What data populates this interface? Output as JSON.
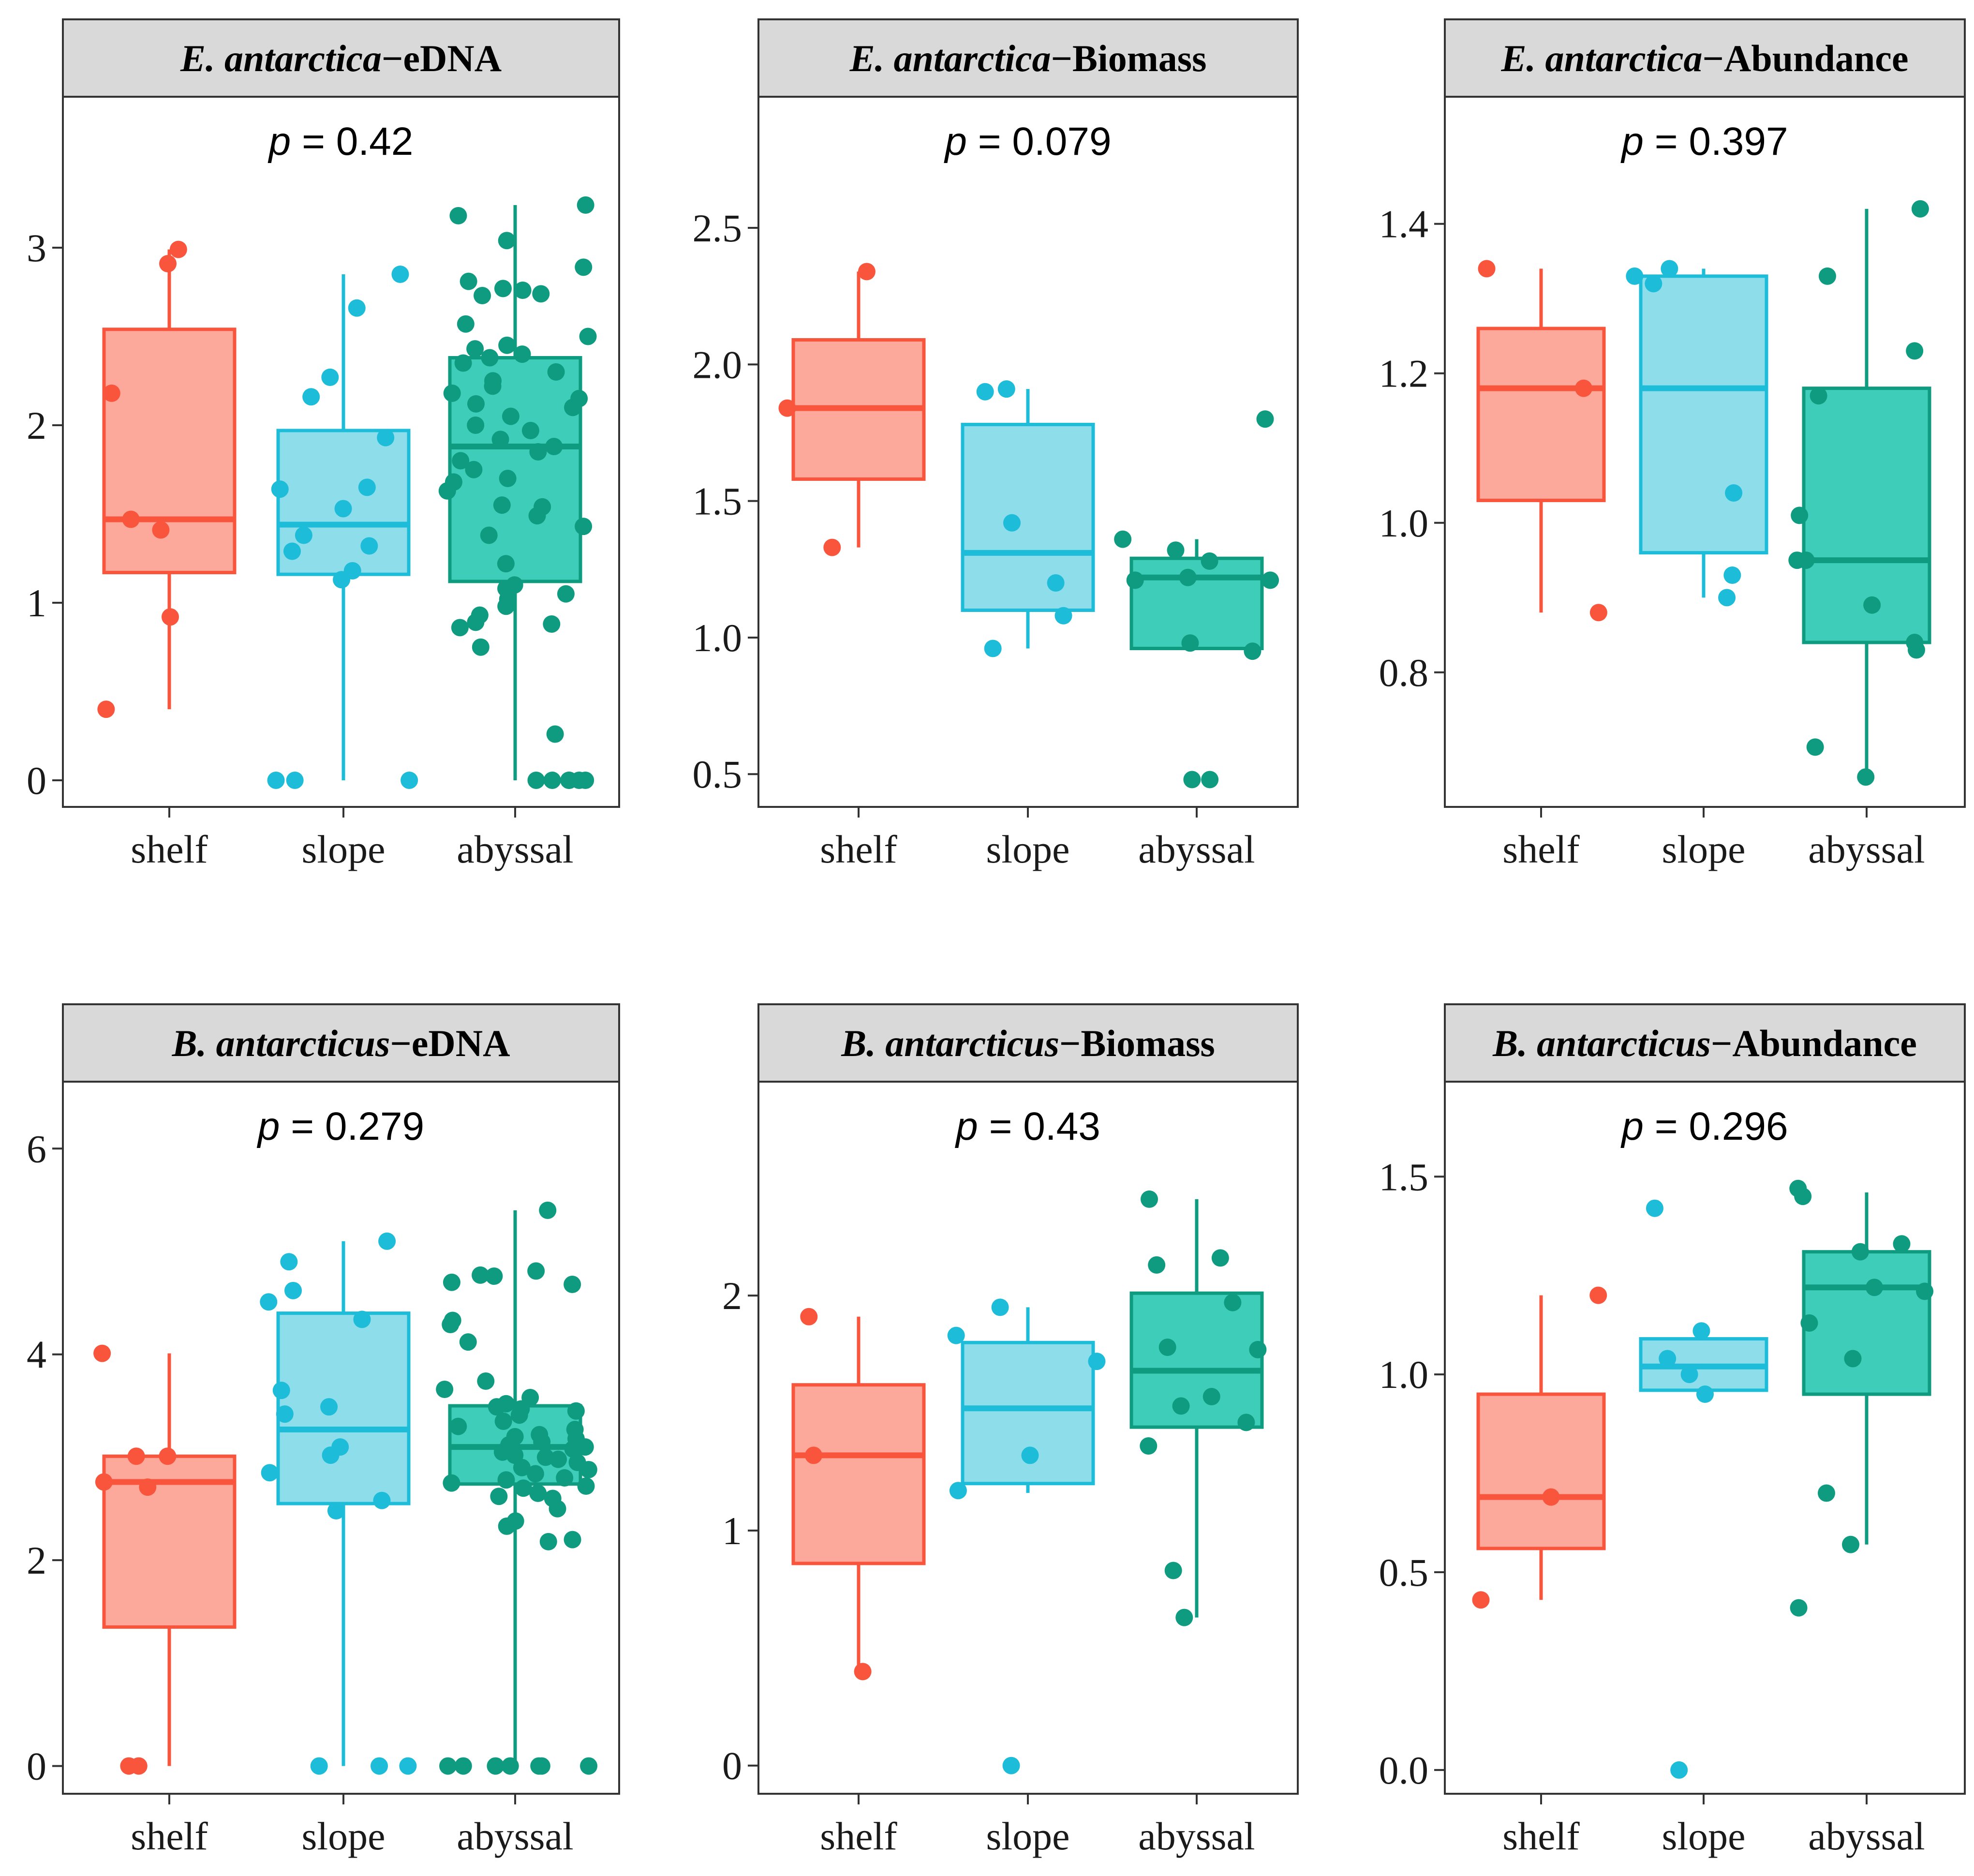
{
  "colors": {
    "shelf": {
      "line": "#F8553C",
      "fill": "#FCA89A"
    },
    "slope": {
      "line": "#1DBCD8",
      "fill": "#8EDDEB"
    },
    "abyssal": {
      "line": "#0E9B80",
      "fill": "#3ECDB8"
    },
    "strip": "#d9d9d9",
    "frame": "#333333"
  },
  "chart_data": [
    {
      "type": "box",
      "species": "E. antarctica",
      "metric": "eDNA",
      "title_species": "E. antarctica",
      "title_metric": "−eDNA",
      "p_label": "p",
      "p_value": "= 0.42",
      "categories": [
        "shelf",
        "slope",
        "abyssal"
      ],
      "ylim": [
        -0.15,
        3.85
      ],
      "yticks": [
        0,
        1,
        2,
        3
      ],
      "yticklabels": [
        "0",
        "1",
        "2",
        "3"
      ],
      "boxes": [
        {
          "category": "shelf",
          "whisker_low": 0.4,
          "q1": 1.17,
          "median": 1.47,
          "q3": 2.54,
          "whisker_high": 2.99
        },
        {
          "category": "slope",
          "whisker_low": 0.0,
          "q1": 1.16,
          "median": 1.44,
          "q3": 1.97,
          "whisker_high": 2.85
        },
        {
          "category": "abyssal",
          "whisker_low": 0.0,
          "q1": 1.12,
          "median": 1.88,
          "q3": 2.38,
          "whisker_high": 3.24
        }
      ],
      "points": [
        {
          "category": "shelf",
          "y": [
            2.91,
            2.99,
            2.18,
            1.47,
            1.41,
            0.92,
            0.4
          ]
        },
        {
          "category": "slope",
          "y": [
            2.85,
            2.66,
            2.27,
            2.16,
            1.93,
            1.65,
            1.64,
            1.53,
            1.38,
            1.32,
            1.29,
            1.18,
            1.13,
            0.0,
            0.0,
            0.0
          ]
        },
        {
          "category": "abyssal",
          "y": [
            3.24,
            3.18,
            3.04,
            2.89,
            2.81,
            2.77,
            2.76,
            2.74,
            2.73,
            2.57,
            2.5,
            2.45,
            2.43,
            2.4,
            2.38,
            2.35,
            2.3,
            2.25,
            2.22,
            2.18,
            2.15,
            2.12,
            2.1,
            2.05,
            2.0,
            1.97,
            1.92,
            1.88,
            1.85,
            1.8,
            1.75,
            1.7,
            1.68,
            1.63,
            1.55,
            1.54,
            1.49,
            1.43,
            1.38,
            1.22,
            1.1,
            1.08,
            1.05,
            1.02,
            0.98,
            0.93,
            0.89,
            0.88,
            0.86,
            0.75,
            0.26,
            0.0,
            0.0,
            0.0,
            0.0,
            0.0,
            0.0
          ]
        }
      ]
    },
    {
      "type": "box",
      "species": "E. antarctica",
      "metric": "Biomass",
      "title_species": "E. antarctica",
      "title_metric": "−Biomass",
      "p_label": "p",
      "p_value": "= 0.079",
      "categories": [
        "shelf",
        "slope",
        "abyssal"
      ],
      "ylim": [
        0.38,
        2.98
      ],
      "yticks": [
        0.5,
        1.0,
        1.5,
        2.0,
        2.5
      ],
      "yticklabels": [
        "0.5",
        "1.0",
        "1.5",
        "2.0",
        "2.5"
      ],
      "boxes": [
        {
          "category": "shelf",
          "whisker_low": 1.33,
          "q1": 1.58,
          "median": 1.84,
          "q3": 2.09,
          "whisker_high": 2.34
        },
        {
          "category": "slope",
          "whisker_low": 0.96,
          "q1": 1.1,
          "median": 1.31,
          "q3": 1.78,
          "whisker_high": 1.91
        },
        {
          "category": "abyssal",
          "whisker_low": 0.96,
          "q1": 0.96,
          "median": 1.22,
          "q3": 1.29,
          "whisker_high": 1.36
        }
      ],
      "points": [
        {
          "category": "shelf",
          "y": [
            2.34,
            1.84,
            1.33
          ]
        },
        {
          "category": "slope",
          "y": [
            1.91,
            1.9,
            1.42,
            1.2,
            1.08,
            0.96
          ]
        },
        {
          "category": "abyssal",
          "y": [
            1.8,
            1.36,
            1.32,
            1.28,
            1.22,
            1.21,
            1.21,
            0.98,
            0.95,
            0.48,
            0.48
          ]
        }
      ]
    },
    {
      "type": "box",
      "species": "E. antarctica",
      "metric": "Abundance",
      "title_species": "E. antarctica",
      "title_metric": "−Abundance",
      "p_label": "p",
      "p_value": "= 0.397",
      "categories": [
        "shelf",
        "slope",
        "abyssal"
      ],
      "ylim": [
        0.62,
        1.57
      ],
      "yticks": [
        0.8,
        1.0,
        1.2,
        1.4
      ],
      "yticklabels": [
        "0.8",
        "1.0",
        "1.2",
        "1.4"
      ],
      "boxes": [
        {
          "category": "shelf",
          "whisker_low": 0.88,
          "q1": 1.03,
          "median": 1.18,
          "q3": 1.26,
          "whisker_high": 1.34
        },
        {
          "category": "slope",
          "whisker_low": 0.9,
          "q1": 0.96,
          "median": 1.18,
          "q3": 1.33,
          "whisker_high": 1.34
        },
        {
          "category": "abyssal",
          "whisker_low": 0.66,
          "q1": 0.84,
          "median": 0.95,
          "q3": 1.18,
          "whisker_high": 1.42
        }
      ],
      "points": [
        {
          "category": "shelf",
          "y": [
            1.34,
            1.18,
            0.88
          ]
        },
        {
          "category": "slope",
          "y": [
            1.34,
            1.33,
            1.32,
            1.04,
            0.93,
            0.9
          ]
        },
        {
          "category": "abyssal",
          "y": [
            1.42,
            1.33,
            1.23,
            1.17,
            1.01,
            0.95,
            0.95,
            0.89,
            0.84,
            0.83,
            0.7,
            0.66
          ]
        }
      ]
    },
    {
      "type": "box",
      "species": "B. antarcticus",
      "metric": "eDNA",
      "title_species": "B. antarcticus",
      "title_metric": "−eDNA",
      "p_label": "p",
      "p_value": "= 0.279",
      "categories": [
        "shelf",
        "slope",
        "abyssal"
      ],
      "ylim": [
        -0.27,
        6.65
      ],
      "yticks": [
        0,
        2,
        4,
        6
      ],
      "yticklabels": [
        "0",
        "2",
        "4",
        "6"
      ],
      "boxes": [
        {
          "category": "shelf",
          "whisker_low": 0.0,
          "q1": 1.35,
          "median": 2.76,
          "q3": 3.01,
          "whisker_high": 4.01
        },
        {
          "category": "slope",
          "whisker_low": 0.0,
          "q1": 2.55,
          "median": 3.27,
          "q3": 4.4,
          "whisker_high": 5.1
        },
        {
          "category": "abyssal",
          "whisker_low": 0.0,
          "q1": 2.74,
          "median": 3.1,
          "q3": 3.5,
          "whisker_high": 5.4
        }
      ],
      "points": [
        {
          "category": "shelf",
          "y": [
            4.01,
            3.01,
            3.01,
            2.76,
            2.71,
            0.0,
            0.0
          ]
        },
        {
          "category": "slope",
          "y": [
            5.1,
            4.9,
            4.62,
            4.51,
            4.34,
            3.65,
            3.49,
            3.42,
            3.1,
            3.02,
            2.85,
            2.58,
            2.48,
            0.0,
            0.0,
            0.0
          ]
        },
        {
          "category": "abyssal",
          "y": [
            5.4,
            4.81,
            4.77,
            4.76,
            4.7,
            4.68,
            4.33,
            4.29,
            4.12,
            3.74,
            3.66,
            3.58,
            3.52,
            3.49,
            3.47,
            3.45,
            3.41,
            3.35,
            3.3,
            3.27,
            3.22,
            3.2,
            3.18,
            3.15,
            3.12,
            3.1,
            3.08,
            3.05,
            3.02,
            3.0,
            2.98,
            2.95,
            2.9,
            2.88,
            2.84,
            2.8,
            2.78,
            2.75,
            2.72,
            2.7,
            2.65,
            2.62,
            2.6,
            2.5,
            2.38,
            2.33,
            2.2,
            2.18,
            0.0,
            0.0,
            0.0,
            0.0,
            0.0,
            0.0,
            0.0
          ]
        }
      ]
    },
    {
      "type": "box",
      "species": "B. antarcticus",
      "metric": "Biomass",
      "title_species": "B. antarcticus",
      "title_metric": "−Biomass",
      "p_label": "p",
      "p_value": "= 0.43",
      "categories": [
        "shelf",
        "slope",
        "abyssal"
      ],
      "ylim": [
        -0.12,
        2.91
      ],
      "yticks": [
        0,
        1,
        2
      ],
      "yticklabels": [
        "0",
        "1",
        "2"
      ],
      "boxes": [
        {
          "category": "shelf",
          "whisker_low": 0.4,
          "q1": 0.86,
          "median": 1.32,
          "q3": 1.62,
          "whisker_high": 1.91
        },
        {
          "category": "slope",
          "whisker_low": 1.16,
          "q1": 1.2,
          "median": 1.52,
          "q3": 1.8,
          "whisker_high": 1.95
        },
        {
          "category": "abyssal",
          "whisker_low": 0.63,
          "q1": 1.44,
          "median": 1.68,
          "q3": 2.01,
          "whisker_high": 2.41
        }
      ],
      "points": [
        {
          "category": "shelf",
          "y": [
            1.91,
            1.32,
            0.4
          ]
        },
        {
          "category": "slope",
          "y": [
            1.95,
            1.83,
            1.72,
            1.32,
            1.17,
            0.0
          ]
        },
        {
          "category": "abyssal",
          "y": [
            2.41,
            2.16,
            2.13,
            1.97,
            1.78,
            1.77,
            1.57,
            1.53,
            1.46,
            1.36,
            0.83,
            0.63
          ]
        }
      ]
    },
    {
      "type": "box",
      "species": "B. antarcticus",
      "metric": "Abundance",
      "title_species": "B. antarcticus",
      "title_metric": "−Abundance",
      "p_label": "p",
      "p_value": "= 0.296",
      "categories": [
        "shelf",
        "slope",
        "abyssal"
      ],
      "ylim": [
        -0.06,
        1.74
      ],
      "yticks": [
        0.0,
        0.5,
        1.0,
        1.5
      ],
      "yticklabels": [
        "0.0",
        "0.5",
        "1.0",
        "1.5"
      ],
      "boxes": [
        {
          "category": "shelf",
          "whisker_low": 0.43,
          "q1": 0.56,
          "median": 0.69,
          "q3": 0.95,
          "whisker_high": 1.2
        },
        {
          "category": "slope",
          "whisker_low": 0.95,
          "q1": 0.96,
          "median": 1.02,
          "q3": 1.09,
          "whisker_high": 1.11
        },
        {
          "category": "abyssal",
          "whisker_low": 0.57,
          "q1": 0.95,
          "median": 1.22,
          "q3": 1.31,
          "whisker_high": 1.46
        }
      ],
      "points": [
        {
          "category": "shelf",
          "y": [
            1.2,
            0.69,
            0.43
          ]
        },
        {
          "category": "slope",
          "y": [
            1.42,
            1.11,
            1.04,
            1.0,
            0.95,
            0.0
          ]
        },
        {
          "category": "abyssal",
          "y": [
            1.47,
            1.45,
            1.33,
            1.31,
            1.22,
            1.21,
            1.13,
            1.04,
            0.7,
            0.57,
            0.41
          ]
        }
      ]
    }
  ]
}
